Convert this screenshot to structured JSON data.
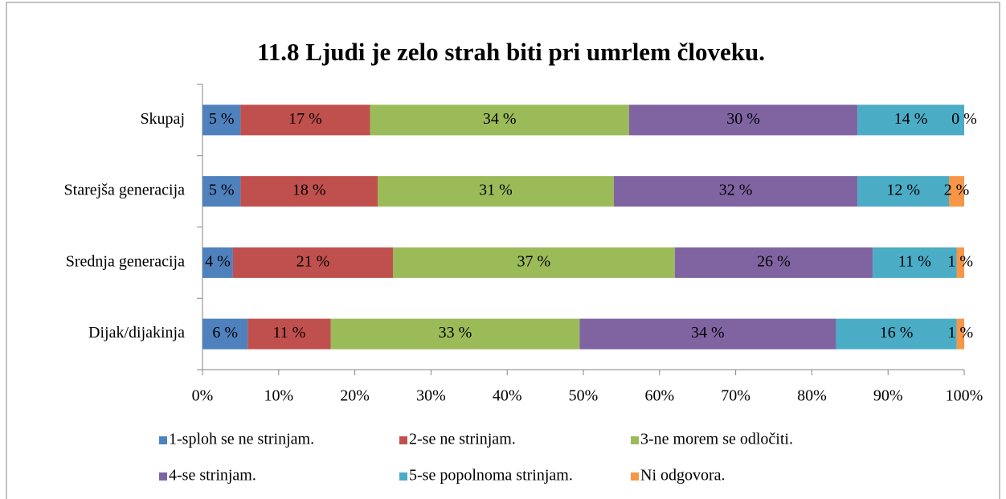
{
  "chart_data": {
    "type": "bar",
    "orientation": "horizontal",
    "stacking": "percent",
    "title": "11.8 Ljudi je zelo strah biti pri umrlem človeku.",
    "categories": [
      "Skupaj",
      "Starejša generacija",
      "Srednja generacija",
      "Dijak/dijakinja"
    ],
    "series": [
      {
        "name": "1-sploh se ne strinjam.",
        "color": "#4f81bd",
        "values": [
          5,
          5,
          4,
          6
        ],
        "value_labels": [
          "5 %",
          "5 %",
          "4 %",
          "6 %"
        ]
      },
      {
        "name": "2-se ne strinjam.",
        "color": "#c0504d",
        "values": [
          17,
          18,
          21,
          11
        ],
        "value_labels": [
          "17 %",
          "18 %",
          "21 %",
          "11 %"
        ]
      },
      {
        "name": "3-ne morem se odločiti.",
        "color": "#9bbb59",
        "values": [
          34,
          31,
          37,
          33
        ],
        "value_labels": [
          "34 %",
          "31 %",
          "37 %",
          "33 %"
        ]
      },
      {
        "name": "4-se strinjam.",
        "color": "#8064a2",
        "values": [
          30,
          32,
          26,
          34
        ],
        "value_labels": [
          "30 %",
          "32 %",
          "26 %",
          "34 %"
        ]
      },
      {
        "name": "5-se popolnoma strinjam.",
        "color": "#4bacc6",
        "values": [
          14,
          12,
          11,
          16
        ],
        "value_labels": [
          "14 %",
          "12 %",
          "11 %",
          "16 %"
        ]
      },
      {
        "name": "Ni odgovora.",
        "color": "#f79646",
        "values": [
          0,
          2,
          1,
          1
        ],
        "value_labels": [
          "0 %",
          "2 %",
          "1 %",
          "1 %"
        ]
      }
    ],
    "xlim": [
      0,
      100
    ],
    "xticks": [
      {
        "value": 0,
        "label": "0%"
      },
      {
        "value": 10,
        "label": "10%"
      },
      {
        "value": 20,
        "label": "20%"
      },
      {
        "value": 30,
        "label": "30%"
      },
      {
        "value": 40,
        "label": "40%"
      },
      {
        "value": 50,
        "label": "50%"
      },
      {
        "value": 60,
        "label": "60%"
      },
      {
        "value": 70,
        "label": "70%"
      },
      {
        "value": 80,
        "label": "80%"
      },
      {
        "value": 90,
        "label": "90%"
      },
      {
        "value": 100,
        "label": "100%"
      }
    ],
    "legend": "bottom"
  }
}
